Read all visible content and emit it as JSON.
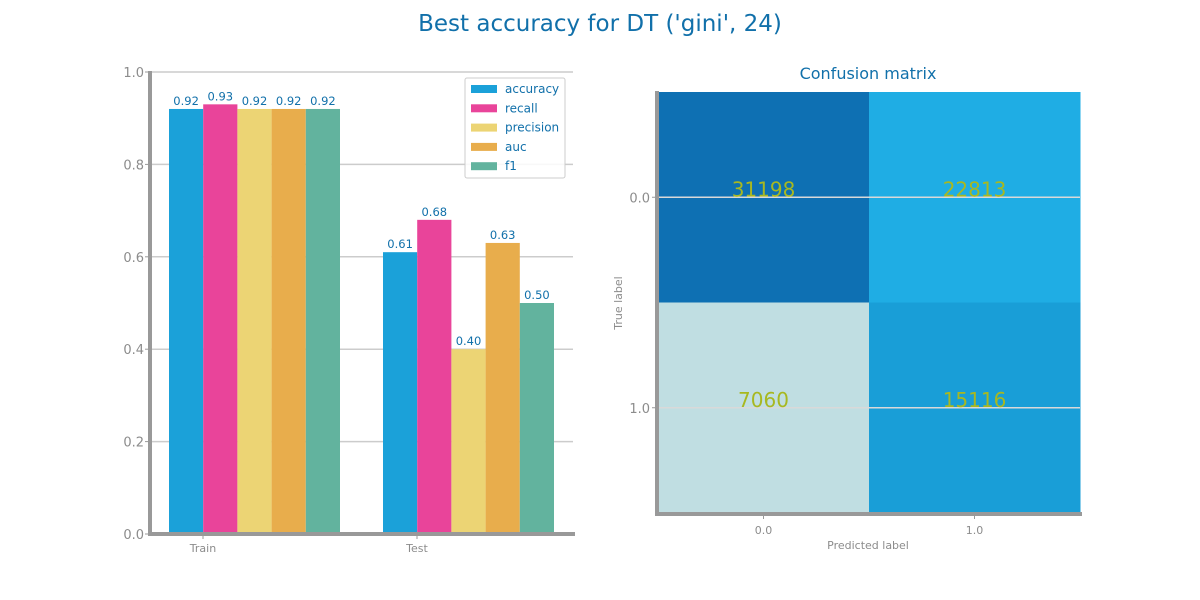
{
  "title": "Best accuracy for DT ('gini', 24)",
  "chart_data": [
    {
      "type": "bar",
      "title": "",
      "categories": [
        "Train",
        "Test"
      ],
      "series": [
        {
          "name": "accuracy",
          "values": [
            0.92,
            0.61
          ],
          "labels": [
            "0.92",
            "0.61"
          ],
          "color": "#1ba1d9"
        },
        {
          "name": "recall",
          "values": [
            0.93,
            0.68
          ],
          "labels": [
            "0.93",
            "0.68"
          ],
          "color": "#e9449a"
        },
        {
          "name": "precision",
          "values": [
            0.92,
            0.4
          ],
          "labels": [
            "0.92",
            "0.40"
          ],
          "color": "#ecd474"
        },
        {
          "name": "auc",
          "values": [
            0.92,
            0.63
          ],
          "labels": [
            "0.92",
            "0.63"
          ],
          "color": "#e8ad4c"
        },
        {
          "name": "f1",
          "values": [
            0.92,
            0.5
          ],
          "labels": [
            "0.92",
            "0.50"
          ],
          "color": "#62b39e"
        }
      ],
      "ylim": [
        0,
        1
      ],
      "yticks": [
        "0.0",
        "0.2",
        "0.4",
        "0.6",
        "0.8",
        "1.0"
      ],
      "grid": true,
      "legend_position": "top-right"
    },
    {
      "type": "heatmap",
      "title": "Confusion matrix",
      "xlabel": "Predicted label",
      "ylabel": "True label",
      "xticks": [
        "0.0",
        "1.0"
      ],
      "yticks": [
        "0.0",
        "1.0"
      ],
      "matrix": [
        [
          31198,
          22813
        ],
        [
          7060,
          15116
        ]
      ],
      "cell_colors": [
        [
          "#0e70b3",
          "#1fade4"
        ],
        [
          "#c0dee2",
          "#199ed7"
        ]
      ]
    }
  ]
}
